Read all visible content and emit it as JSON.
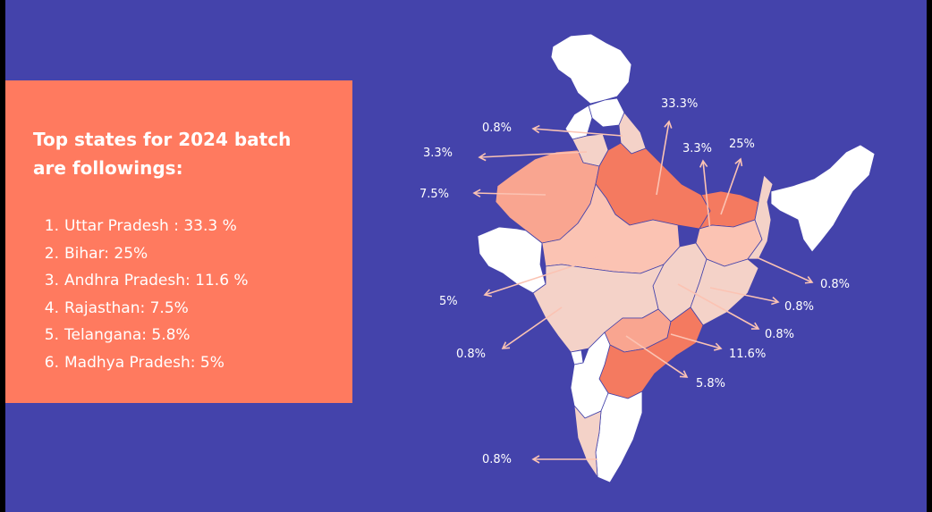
{
  "card": {
    "title": "Top states for 2024 batch\nare followings:",
    "items": [
      {
        "num": "1.",
        "text": "Uttar Pradesh : 33.3 %"
      },
      {
        "num": "2.",
        "text": "Bihar: 25%"
      },
      {
        "num": "3.",
        "text": "Andhra Pradesh: 11.6 %"
      },
      {
        "num": "4.",
        "text": "Rajasthan: 7.5%"
      },
      {
        "num": "5.",
        "text": "Telangana: 5.8%"
      },
      {
        "num": "6.",
        "text": "Madhya Pradesh: 5%"
      }
    ]
  },
  "map": {
    "labels": {
      "uttar_pradesh": "33.3%",
      "bihar": "25%",
      "jharkhand": "3.3%",
      "haryana": "3.3%",
      "delhi": "0.8%",
      "rajasthan": "7.5%",
      "madhya_pradesh": "5%",
      "maharashtra": "0.8%",
      "west_bengal": "0.8%",
      "odisha": "0.8%",
      "chhattisgarh": "0.8%",
      "andhra_pradesh": "11.6%",
      "telangana": "5.8%",
      "kerala": "0.8%"
    }
  },
  "colors": {
    "background": "#4443ab",
    "card": "#ff7a5f",
    "state_dark": "#f47a60",
    "state_medium": "#f9a590",
    "state_light": "#fbc3b3",
    "state_pale": "#f4d2c8",
    "state_none": "#ffffff"
  }
}
